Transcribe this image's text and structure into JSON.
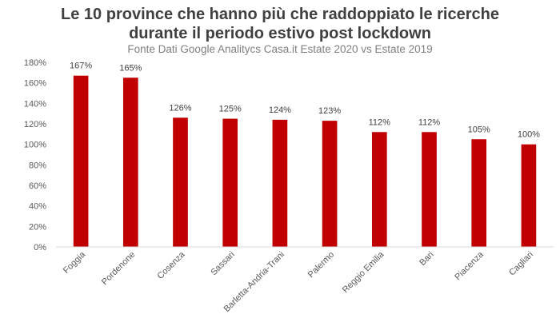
{
  "chart_data": {
    "type": "bar",
    "title": "Le 10 province che hanno più che raddoppiato le ricerche durante il periodo estivo post lockdown",
    "title_lines": [
      "Le 10 province che hanno più che raddoppiato le ricerche",
      "durante il periodo estivo post lockdown"
    ],
    "subtitle": "Fonte Dati Google Analitycs Casa.it Estate 2020 vs Estate 2019",
    "xlabel": "",
    "ylabel": "",
    "categories": [
      "Foggia",
      "Pordenone",
      "Cosenza",
      "Sassari",
      "Barletta-Andria-Trani",
      "Palermo",
      "Reggio Emilia",
      "Bari",
      "Piacenza",
      "Cagliari"
    ],
    "values": [
      167,
      165,
      126,
      125,
      124,
      123,
      112,
      112,
      105,
      100
    ],
    "data_labels": [
      "167%",
      "165%",
      "126%",
      "125%",
      "124%",
      "123%",
      "112%",
      "112%",
      "105%",
      "100%"
    ],
    "ylim": [
      0,
      180
    ],
    "y_ticks": [
      0,
      20,
      40,
      60,
      80,
      100,
      120,
      140,
      160,
      180
    ],
    "y_tick_labels": [
      "0%",
      "20%",
      "40%",
      "60%",
      "80%",
      "100%",
      "120%",
      "140%",
      "160%",
      "180%"
    ],
    "grid": false,
    "legend": "none",
    "bar_color": "#c00000"
  }
}
